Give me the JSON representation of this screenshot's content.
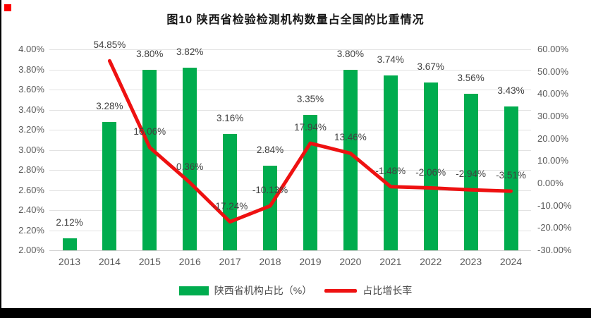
{
  "page": {
    "background": "#ffffff",
    "artifacts": {
      "corner_marker_color": "#fe0000",
      "left_edge_color": "#000000",
      "bottom_band_color": "#000000"
    }
  },
  "chart_data": {
    "type": "combo",
    "title": "图10  陕西省检验检测机构数量占全国的比重情况",
    "categories": [
      "2013",
      "2014",
      "2015",
      "2016",
      "2017",
      "2018",
      "2019",
      "2020",
      "2021",
      "2022",
      "2023",
      "2024"
    ],
    "series": [
      {
        "name": "陕西省机构占比（%）",
        "type": "bar",
        "axis": "left",
        "color": "#00ac4e",
        "values": [
          2.12,
          3.28,
          3.8,
          3.82,
          3.16,
          2.84,
          3.35,
          3.8,
          3.74,
          3.67,
          3.56,
          3.43
        ],
        "labels": [
          "2.12%",
          "3.28%",
          "3.80%",
          "3.82%",
          "3.16%",
          "2.84%",
          "3.35%",
          "3.80%",
          "3.74%",
          "3.67%",
          "3.56%",
          "3.43%"
        ]
      },
      {
        "name": "占比增长率",
        "type": "line",
        "axis": "right",
        "color": "#ee1111",
        "values": [
          null,
          54.85,
          16.06,
          0.36,
          -17.24,
          -10.13,
          17.94,
          13.46,
          -1.48,
          -2.06,
          -2.94,
          -3.51
        ],
        "labels": [
          null,
          "54.85%",
          "16.06%",
          "0.36%",
          "-17.24%",
          "-10.13%",
          "17.94%",
          "13.46%",
          "-1.48%",
          "-2.06%",
          "-2.94%",
          "-3.51%"
        ]
      }
    ],
    "left_axis": {
      "min": 2.0,
      "max": 4.0,
      "step": 0.2,
      "ticks": [
        "2.00%",
        "2.20%",
        "2.40%",
        "2.60%",
        "2.80%",
        "3.00%",
        "3.20%",
        "3.40%",
        "3.60%",
        "3.80%",
        "4.00%"
      ]
    },
    "right_axis": {
      "min": -30,
      "max": 60,
      "step": 10,
      "ticks": [
        "-30.00%",
        "-20.00%",
        "-10.00%",
        "0.00%",
        "10.00%",
        "20.00%",
        "30.00%",
        "40.00%",
        "50.00%",
        "60.00%"
      ]
    },
    "grid": true,
    "legend_position": "bottom"
  }
}
